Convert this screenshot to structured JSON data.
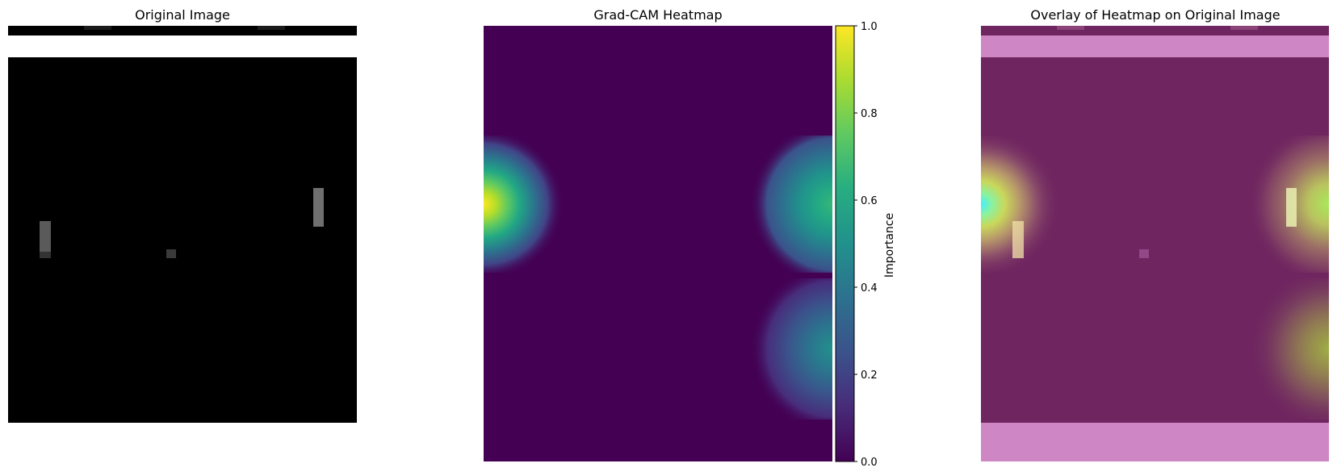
{
  "chart_data": [
    {
      "type": "image",
      "title": "Original Image",
      "description_visible": "grayscale frame",
      "grid": false,
      "axes": false,
      "data": {
        "top_bar_color": "#000000",
        "background": "#000000"
      }
    },
    {
      "type": "heatmap",
      "title": "Grad-CAM Heatmap",
      "colorbar": {
        "label": "Importance",
        "range": [
          0.0,
          1.0
        ],
        "ticks": [
          "0.0",
          "0.2",
          "0.4",
          "0.6",
          "0.8",
          "1.0"
        ],
        "colormap": "viridis"
      },
      "grid": false,
      "axes": false,
      "hotspots": [
        {
          "x": 0.1,
          "y": 0.41,
          "value": 1.0
        },
        {
          "x": 0.9,
          "y": 0.41,
          "value": 0.62
        },
        {
          "x": 0.88,
          "y": 0.74,
          "value": 0.5
        }
      ]
    },
    {
      "type": "overlay",
      "title": "Overlay of Heatmap on Original Image",
      "grid": false,
      "axes": false
    }
  ],
  "colors": {
    "viridis_low": "#440154",
    "viridis_high": "#fde725",
    "overlay_tint": "#cf86c4",
    "overlay_body": "#6f2560"
  }
}
